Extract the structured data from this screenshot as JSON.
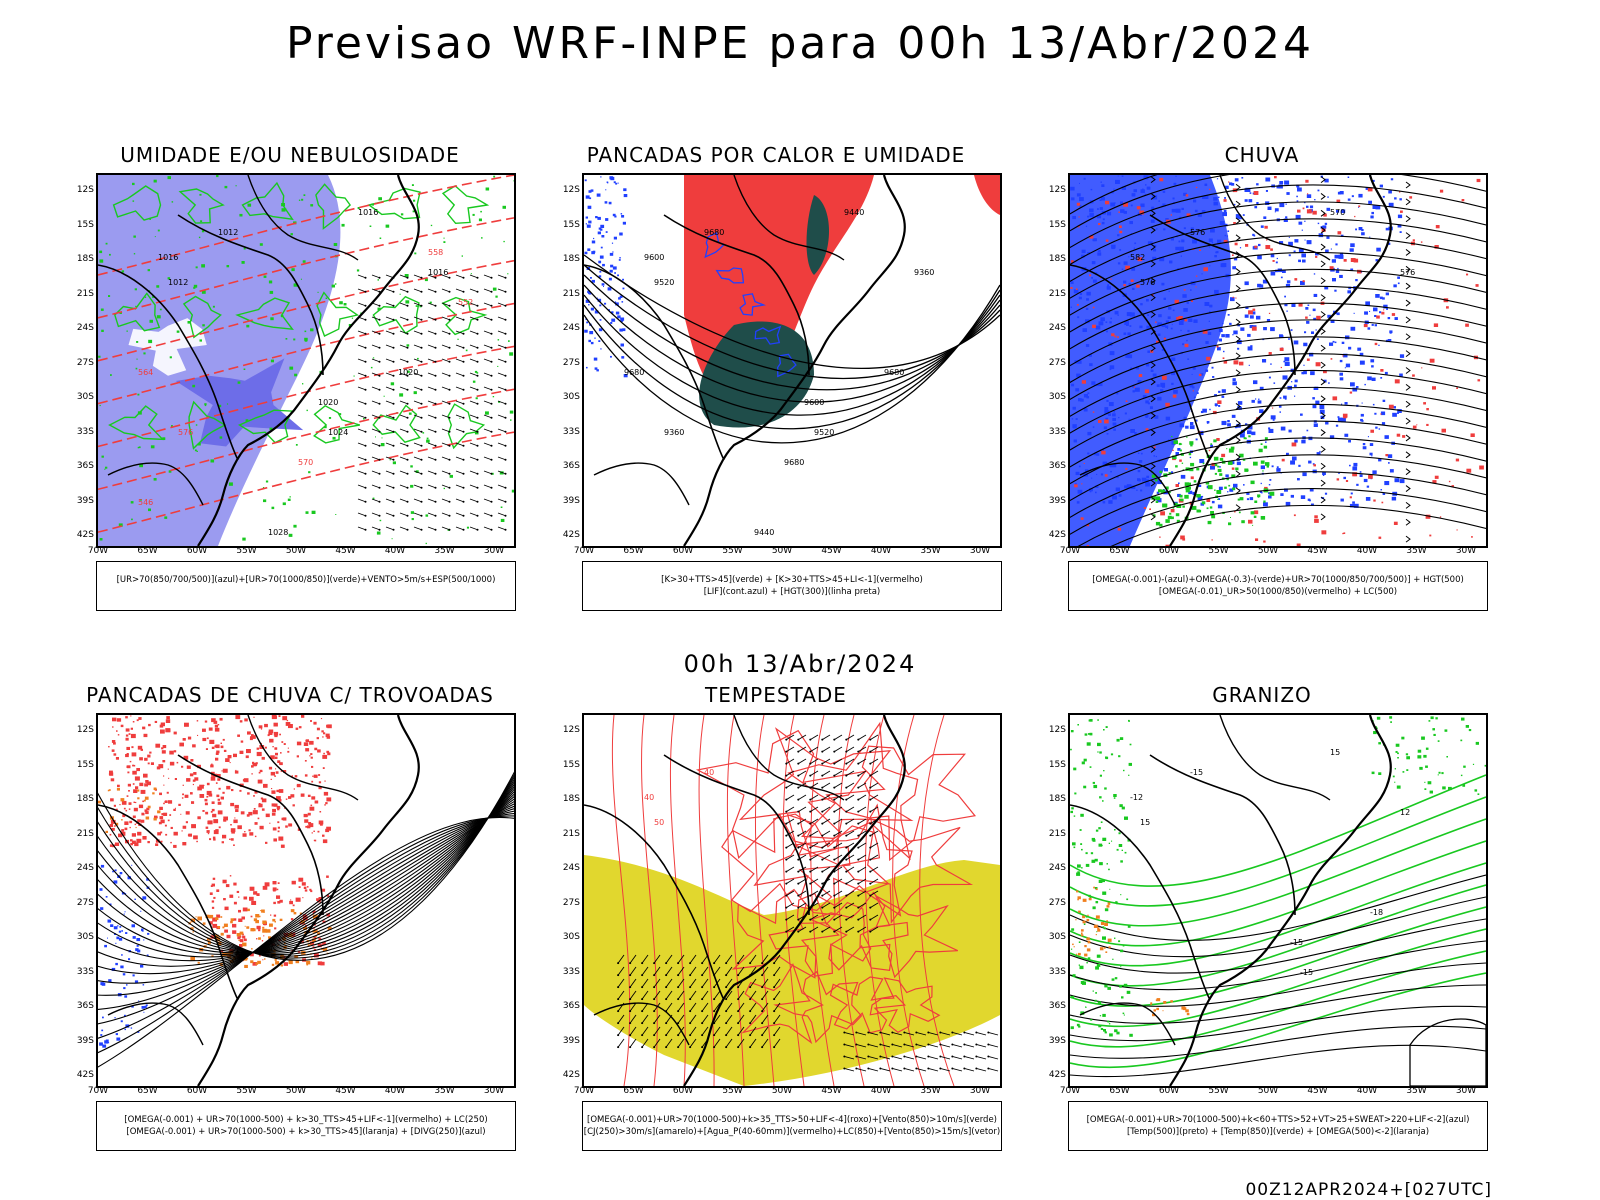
{
  "title": "Previsao WRF-INPE  para 00h 13/Abr/2024",
  "mid_title": "00h 13/Abr/2024",
  "footer": "00Z12APR2024+[027UTC]",
  "lat_labels": [
    "12S",
    "15S",
    "18S",
    "21S",
    "24S",
    "27S",
    "30S",
    "33S",
    "36S",
    "39S",
    "42S"
  ],
  "lon_labels": [
    "70W",
    "65W",
    "60W",
    "55W",
    "50W",
    "45W",
    "40W",
    "35W",
    "30W"
  ],
  "colors": {
    "red": "#ef3d3d",
    "blue": "#2040ff",
    "green": "#19c820",
    "lavender": "#9b9bf0",
    "yellow": "#e1d72e",
    "darkteal": "#1f4d4a",
    "orange": "#f07f1f"
  },
  "panels": [
    {
      "title": "UMIDADE E/OU NEBULOSIDADE",
      "legend_line1": "[UR>70(850/700/500)](azul)+[UR>70(1000/850)](verde)+VENTO>5m/s+ESP(500/1000)",
      "legend_line2": "",
      "contour_labels": [
        "1012",
        "1016",
        "1012",
        "1016",
        "1016",
        "1020",
        "1020",
        "1024",
        "1028",
        "576",
        "570",
        "564",
        "558",
        "552",
        "546"
      ]
    },
    {
      "title": "PANCADAS POR CALOR E UMIDADE",
      "legend_line1": "[K>30+TTS>45](verde) + [K>30+TTS>45+LI<-1](vermelho)",
      "legend_line2": "[LIF](cont.azul) + [HGT(300)](linha preta)",
      "contour_labels": [
        "9680",
        "9600",
        "9520",
        "9440",
        "9360",
        "9680",
        "9600",
        "9520",
        "9440",
        "9360",
        "9680",
        "9680"
      ]
    },
    {
      "title": "CHUVA",
      "legend_line1": "[OMEGA(-0.001)-(azul)+OMEGA(-0.3)-(verde)+UR>70(1000/850/700/500)] + HGT(500)",
      "legend_line2": "[OMEGA(-0.01)_UR>50(1000/850)(vermelho) + LC(500)",
      "contour_labels": [
        "576",
        "582",
        "576",
        "570",
        "576"
      ]
    },
    {
      "title": "PANCADAS DE CHUVA C/ TROVOADAS",
      "legend_line1": "[OMEGA(-0.001) + UR>70(1000-500) + k>30_TTS>45+LIF<-1](vermelho) + LC(250)",
      "legend_line2": "[OMEGA(-0.001) + UR>70(1000-500) + k>30_TTS>45](laranja) + [DIVG(250)](azul)",
      "contour_labels": []
    },
    {
      "title": "TEMPESTADE",
      "legend_line1": "[OMEGA(-0.001)+UR>70(1000-500)+k>35_TTS>50+LIF<-4](roxo)+[Vento(850)>10m/s](verde)",
      "legend_line2": "[CJ(250)>30m/s](amarelo)+[Agua_P(40-60mm)](vermelho)+LC(850)+[Vento(850)>15m/s](vetor)",
      "contour_labels": [
        "40",
        "40",
        "50"
      ]
    },
    {
      "title": "GRANIZO",
      "legend_line1": "[OMEGA(-0.001)+UR>70(1000-500)+k<60+TTS>52+VT>25+SWEAT>220+LIF<-2](azul)",
      "legend_line2": "[Temp(500)](preto) + [Temp(850)](verde) + [OMEGA(500)<-2](laranja)",
      "contour_labels": [
        "-15",
        "-12",
        "15",
        "15",
        "12",
        "-18",
        "-15",
        "-15"
      ]
    }
  ]
}
